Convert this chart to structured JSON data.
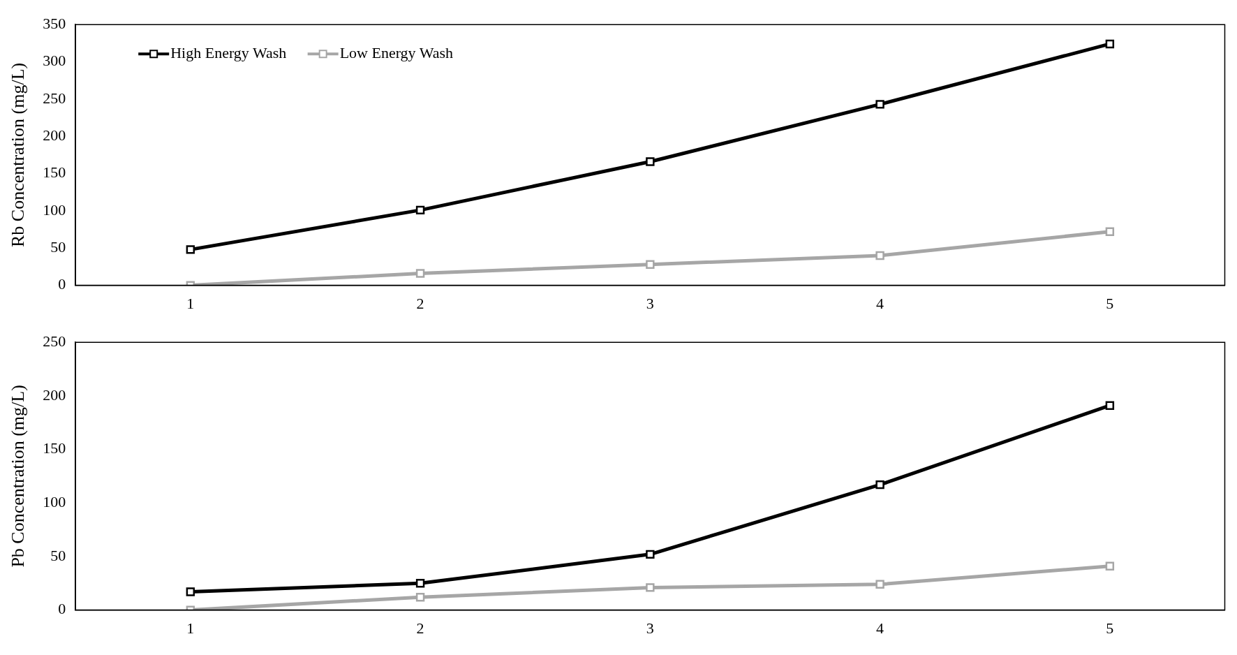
{
  "chart_data": [
    {
      "type": "line",
      "ylabel": "Rb Concentration (mg/L)",
      "categories": [
        "1",
        "2",
        "3",
        "4",
        "5"
      ],
      "ylim": [
        0,
        350
      ],
      "yticks": [
        0,
        50,
        100,
        150,
        200,
        250,
        300,
        350
      ],
      "grid": false,
      "legend": "top left",
      "marker": "square",
      "line_style": "solid",
      "series": [
        {
          "name": "High Energy Wash",
          "color": "#000000",
          "values": [
            48,
            101,
            166,
            243,
            324
          ]
        },
        {
          "name": "Low Energy Wash",
          "color": "#a6a6a6",
          "values": [
            0,
            16,
            28,
            40,
            72
          ]
        }
      ]
    },
    {
      "type": "line",
      "ylabel": "Pb Concentration (mg/L)",
      "categories": [
        "1",
        "2",
        "3",
        "4",
        "5"
      ],
      "ylim": [
        0,
        250
      ],
      "yticks": [
        0,
        50,
        100,
        150,
        200,
        250
      ],
      "grid": false,
      "legend": false,
      "marker": "square",
      "line_style": "solid",
      "series": [
        {
          "color": "#000000",
          "values": [
            17,
            25,
            52,
            117,
            191
          ]
        },
        {
          "color": "#a6a6a6",
          "values": [
            0,
            12,
            21,
            24,
            41
          ]
        }
      ]
    }
  ]
}
